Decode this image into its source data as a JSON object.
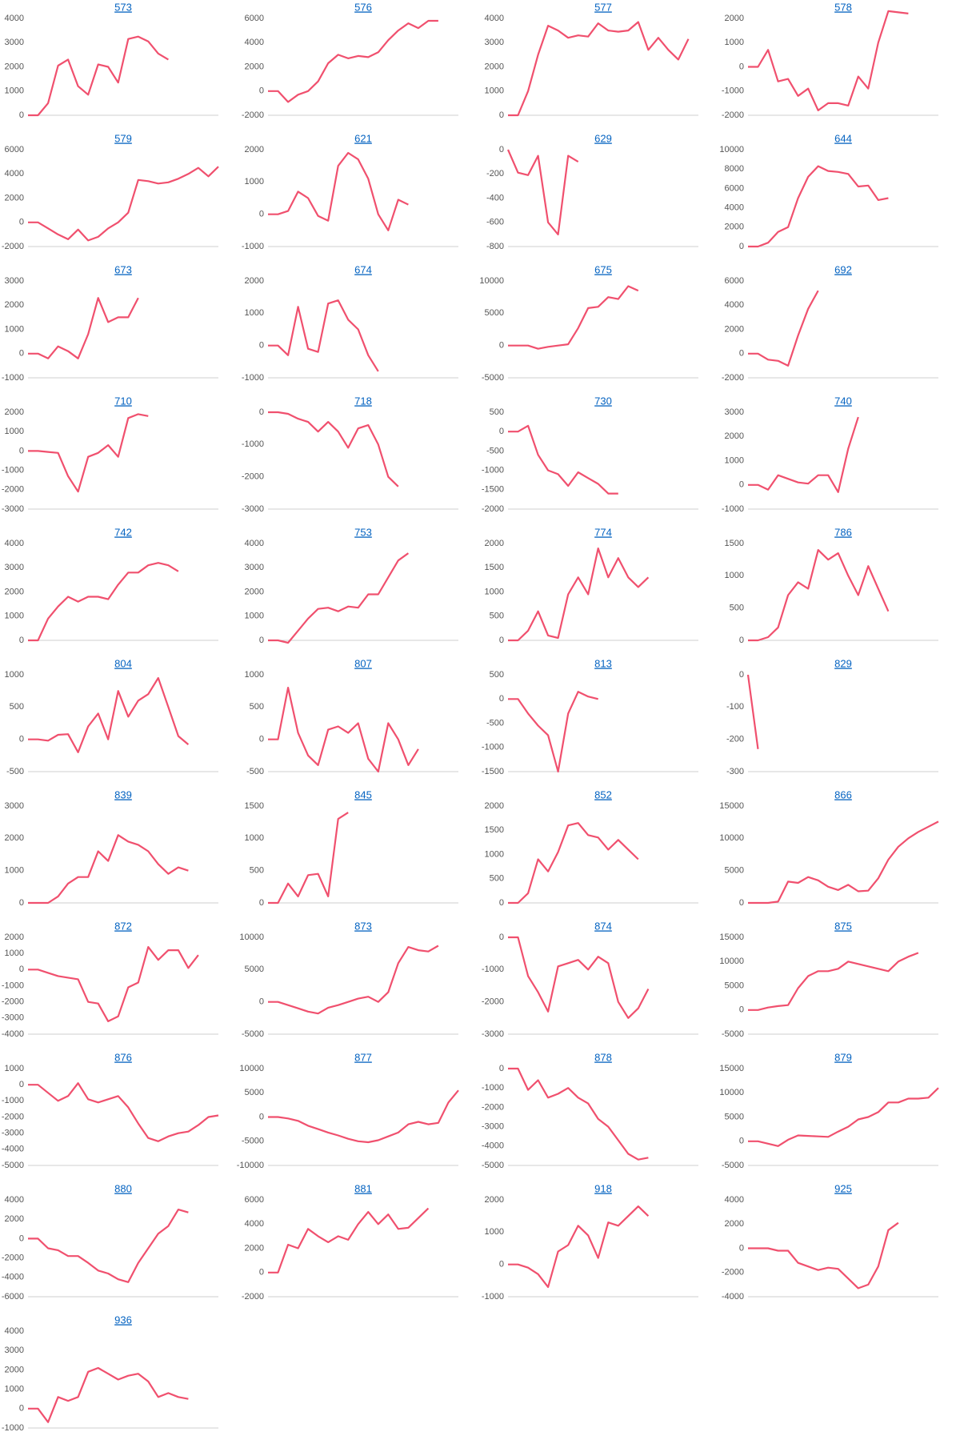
{
  "chart_data": [
    {
      "type": "line",
      "title": "573",
      "color": "#f0506e",
      "ylim": [
        0,
        4000
      ],
      "yticks": [
        0,
        1000,
        2000,
        3000,
        4000
      ],
      "values": [
        0,
        0,
        500,
        2050,
        2300,
        1200,
        850,
        2100,
        2000,
        1350,
        3150,
        3250,
        3050,
        2550,
        2300
      ]
    },
    {
      "type": "line",
      "title": "576",
      "color": "#f0506e",
      "ylim": [
        -2000,
        6000
      ],
      "yticks": [
        -2000,
        0,
        2000,
        4000,
        6000
      ],
      "values": [
        0,
        0,
        -900,
        -300,
        0,
        800,
        2300,
        3000,
        2700,
        2900,
        2800,
        3200,
        4200,
        5000,
        5600,
        5200,
        5800,
        5800
      ]
    },
    {
      "type": "line",
      "title": "577",
      "color": "#f0506e",
      "ylim": [
        0,
        4000
      ],
      "yticks": [
        0,
        1000,
        2000,
        3000,
        4000
      ],
      "values": [
        0,
        0,
        1000,
        2500,
        3700,
        3500,
        3200,
        3300,
        3250,
        3800,
        3500,
        3450,
        3500,
        3850,
        2700,
        3200,
        2700,
        2300,
        3150
      ]
    },
    {
      "type": "line",
      "title": "578",
      "color": "#f0506e",
      "ylim": [
        -2000,
        2000
      ],
      "yticks": [
        -2000,
        -1000,
        0,
        1000,
        2000
      ],
      "values": [
        0,
        0,
        700,
        -600,
        -500,
        -1200,
        -900,
        -1800,
        -1500,
        -1500,
        -1600,
        -400,
        -900,
        1000,
        2300,
        2250,
        2200
      ]
    },
    {
      "type": "line",
      "title": "579",
      "color": "#f0506e",
      "ylim": [
        -2000,
        6000
      ],
      "yticks": [
        -2000,
        0,
        2000,
        4000,
        6000
      ],
      "values": [
        0,
        0,
        -500,
        -1000,
        -1400,
        -600,
        -1500,
        -1200,
        -500,
        0,
        800,
        3500,
        3400,
        3200,
        3300,
        3600,
        4000,
        4500,
        3800,
        4600
      ]
    },
    {
      "type": "line",
      "title": "621",
      "color": "#f0506e",
      "ylim": [
        -1000,
        2000
      ],
      "yticks": [
        -1000,
        0,
        1000,
        2000
      ],
      "values": [
        0,
        0,
        100,
        700,
        500,
        -50,
        -200,
        1500,
        1900,
        1700,
        1100,
        0,
        -500,
        450,
        300
      ]
    },
    {
      "type": "line",
      "title": "629",
      "color": "#f0506e",
      "ylim": [
        -800,
        0
      ],
      "yticks": [
        -800,
        -600,
        -400,
        -200,
        0
      ],
      "values": [
        0,
        -190,
        -210,
        -50,
        -600,
        -700,
        -50,
        -100
      ]
    },
    {
      "type": "line",
      "title": "644",
      "color": "#f0506e",
      "ylim": [
        0,
        10000
      ],
      "yticks": [
        0,
        2000,
        4000,
        6000,
        8000,
        10000
      ],
      "values": [
        0,
        0,
        400,
        1500,
        2000,
        5000,
        7200,
        8300,
        7800,
        7700,
        7500,
        6200,
        6300,
        4800,
        5000
      ]
    },
    {
      "type": "line",
      "title": "673",
      "color": "#f0506e",
      "ylim": [
        -1000,
        3000
      ],
      "yticks": [
        -1000,
        0,
        1000,
        2000,
        3000
      ],
      "values": [
        0,
        0,
        -200,
        300,
        100,
        -200,
        800,
        2300,
        1300,
        1500,
        1500,
        2300
      ]
    },
    {
      "type": "line",
      "title": "674",
      "color": "#f0506e",
      "ylim": [
        -1000,
        2000
      ],
      "yticks": [
        -1000,
        0,
        1000,
        2000
      ],
      "values": [
        0,
        0,
        -300,
        1200,
        -100,
        -200,
        1300,
        1400,
        800,
        500,
        -300,
        -800
      ]
    },
    {
      "type": "line",
      "title": "675",
      "color": "#f0506e",
      "ylim": [
        -5000,
        10000
      ],
      "yticks": [
        -5000,
        0,
        5000,
        10000
      ],
      "values": [
        0,
        0,
        0,
        -500,
        -200,
        0,
        200,
        2700,
        5800,
        6000,
        7500,
        7200,
        9200,
        8500
      ]
    },
    {
      "type": "line",
      "title": "692",
      "color": "#f0506e",
      "ylim": [
        -2000,
        6000
      ],
      "yticks": [
        -2000,
        0,
        2000,
        4000,
        6000
      ],
      "values": [
        0,
        0,
        -500,
        -600,
        -1000,
        1500,
        3700,
        5200
      ]
    },
    {
      "type": "line",
      "title": "710",
      "color": "#f0506e",
      "ylim": [
        -3000,
        2000
      ],
      "yticks": [
        -3000,
        -2000,
        -1000,
        0,
        1000,
        2000
      ],
      "values": [
        0,
        0,
        -50,
        -100,
        -1300,
        -2100,
        -300,
        -100,
        300,
        -300,
        1700,
        1900,
        1800
      ]
    },
    {
      "type": "line",
      "title": "718",
      "color": "#f0506e",
      "ylim": [
        -3000,
        0
      ],
      "yticks": [
        -3000,
        -2000,
        -1000,
        0
      ],
      "values": [
        0,
        0,
        -50,
        -200,
        -300,
        -600,
        -300,
        -600,
        -1100,
        -500,
        -400,
        -1000,
        -2000,
        -2300
      ]
    },
    {
      "type": "line",
      "title": "730",
      "color": "#f0506e",
      "ylim": [
        -2000,
        500
      ],
      "yticks": [
        -2000,
        -1500,
        -1000,
        -500,
        0,
        500
      ],
      "values": [
        0,
        0,
        150,
        -600,
        -1000,
        -1100,
        -1400,
        -1050,
        -1200,
        -1350,
        -1600,
        -1600
      ]
    },
    {
      "type": "line",
      "title": "740",
      "color": "#f0506e",
      "ylim": [
        -1000,
        3000
      ],
      "yticks": [
        -1000,
        0,
        1000,
        2000,
        3000
      ],
      "values": [
        0,
        0,
        -200,
        400,
        250,
        100,
        50,
        400,
        400,
        -300,
        1500,
        2800
      ]
    },
    {
      "type": "line",
      "title": "742",
      "color": "#f0506e",
      "ylim": [
        0,
        4000
      ],
      "yticks": [
        0,
        1000,
        2000,
        3000,
        4000
      ],
      "values": [
        0,
        0,
        900,
        1400,
        1800,
        1600,
        1800,
        1800,
        1700,
        2300,
        2800,
        2800,
        3100,
        3200,
        3100,
        2850
      ]
    },
    {
      "type": "line",
      "title": "753",
      "color": "#f0506e",
      "ylim": [
        0,
        4000
      ],
      "yticks": [
        0,
        1000,
        2000,
        3000,
        4000
      ],
      "values": [
        0,
        0,
        -100,
        400,
        900,
        1300,
        1350,
        1200,
        1400,
        1350,
        1900,
        1900,
        2600,
        3300,
        3600
      ]
    },
    {
      "type": "line",
      "title": "774",
      "color": "#f0506e",
      "ylim": [
        0,
        2000
      ],
      "yticks": [
        0,
        500,
        1000,
        1500,
        2000
      ],
      "values": [
        0,
        0,
        200,
        600,
        100,
        50,
        950,
        1300,
        950,
        1900,
        1300,
        1700,
        1300,
        1100,
        1300
      ]
    },
    {
      "type": "line",
      "title": "786",
      "color": "#f0506e",
      "ylim": [
        0,
        1500
      ],
      "yticks": [
        0,
        500,
        1000,
        1500
      ],
      "values": [
        0,
        0,
        50,
        200,
        700,
        900,
        800,
        1400,
        1250,
        1350,
        1000,
        700,
        1150,
        800,
        450
      ]
    },
    {
      "type": "line",
      "title": "804",
      "color": "#f0506e",
      "ylim": [
        -500,
        1000
      ],
      "yticks": [
        -500,
        0,
        500,
        1000
      ],
      "values": [
        0,
        0,
        -20,
        70,
        80,
        -200,
        200,
        400,
        0,
        750,
        350,
        600,
        700,
        950,
        500,
        50,
        -80
      ]
    },
    {
      "type": "line",
      "title": "807",
      "color": "#f0506e",
      "ylim": [
        -500,
        1000
      ],
      "yticks": [
        -500,
        0,
        500,
        1000
      ],
      "values": [
        0,
        0,
        800,
        100,
        -250,
        -400,
        150,
        200,
        100,
        250,
        -300,
        -500,
        250,
        0,
        -400,
        -150
      ]
    },
    {
      "type": "line",
      "title": "813",
      "color": "#f0506e",
      "ylim": [
        -1500,
        500
      ],
      "yticks": [
        -1500,
        -1000,
        -500,
        0,
        500
      ],
      "values": [
        0,
        0,
        -300,
        -550,
        -750,
        -1500,
        -300,
        150,
        50,
        0
      ]
    },
    {
      "type": "line",
      "title": "829",
      "color": "#f0506e",
      "ylim": [
        -300,
        0
      ],
      "yticks": [
        -300,
        -200,
        -100,
        0
      ],
      "values": [
        0,
        -230
      ]
    },
    {
      "type": "line",
      "title": "839",
      "color": "#f0506e",
      "ylim": [
        0,
        3000
      ],
      "yticks": [
        0,
        1000,
        2000,
        3000
      ],
      "values": [
        0,
        0,
        0,
        200,
        600,
        800,
        800,
        1600,
        1300,
        2100,
        1900,
        1800,
        1600,
        1200,
        900,
        1100,
        1000
      ]
    },
    {
      "type": "line",
      "title": "845",
      "color": "#f0506e",
      "ylim": [
        0,
        1500
      ],
      "yticks": [
        0,
        500,
        1000,
        1500
      ],
      "values": [
        0,
        0,
        300,
        100,
        430,
        450,
        100,
        1300,
        1400
      ]
    },
    {
      "type": "line",
      "title": "852",
      "color": "#f0506e",
      "ylim": [
        0,
        2000
      ],
      "yticks": [
        0,
        500,
        1000,
        1500,
        2000
      ],
      "values": [
        0,
        0,
        200,
        900,
        650,
        1050,
        1600,
        1650,
        1400,
        1350,
        1100,
        1300,
        1100,
        900
      ]
    },
    {
      "type": "line",
      "title": "866",
      "color": "#f0506e",
      "ylim": [
        0,
        15000
      ],
      "yticks": [
        0,
        5000,
        10000,
        15000
      ],
      "values": [
        0,
        0,
        0,
        200,
        3300,
        3100,
        4000,
        3500,
        2500,
        2000,
        2800,
        1800,
        1900,
        3800,
        6700,
        8700,
        10000,
        11000,
        11800,
        12600
      ]
    },
    {
      "type": "line",
      "title": "872",
      "color": "#f0506e",
      "ylim": [
        -4000,
        2000
      ],
      "yticks": [
        -4000,
        -3000,
        -2000,
        -1000,
        0,
        1000,
        2000
      ],
      "values": [
        0,
        0,
        -200,
        -400,
        -500,
        -600,
        -2000,
        -2100,
        -3200,
        -2900,
        -1100,
        -800,
        1400,
        600,
        1200,
        1200,
        100,
        900
      ]
    },
    {
      "type": "line",
      "title": "873",
      "color": "#f0506e",
      "ylim": [
        -5000,
        10000
      ],
      "yticks": [
        -5000,
        0,
        5000,
        10000
      ],
      "values": [
        0,
        0,
        -500,
        -1000,
        -1500,
        -1800,
        -900,
        -500,
        0,
        500,
        800,
        0,
        1500,
        6000,
        8500,
        8000,
        7800,
        8700
      ]
    },
    {
      "type": "line",
      "title": "874",
      "color": "#f0506e",
      "ylim": [
        -3000,
        0
      ],
      "yticks": [
        -3000,
        -2000,
        -1000,
        0
      ],
      "values": [
        0,
        0,
        -1200,
        -1700,
        -2300,
        -900,
        -800,
        -700,
        -1000,
        -600,
        -800,
        -2000,
        -2500,
        -2200,
        -1600
      ]
    },
    {
      "type": "line",
      "title": "875",
      "color": "#f0506e",
      "ylim": [
        -5000,
        15000
      ],
      "yticks": [
        -5000,
        0,
        5000,
        10000,
        15000
      ],
      "values": [
        0,
        0,
        500,
        800,
        1000,
        4500,
        7000,
        8000,
        8000,
        8500,
        10000,
        9500,
        9000,
        8500,
        8000,
        10000,
        11000,
        11800
      ]
    },
    {
      "type": "line",
      "title": "876",
      "color": "#f0506e",
      "ylim": [
        -5000,
        1000
      ],
      "yticks": [
        -5000,
        -4000,
        -3000,
        -2000,
        -1000,
        0,
        1000
      ],
      "values": [
        0,
        0,
        -500,
        -1000,
        -700,
        100,
        -900,
        -1100,
        -900,
        -700,
        -1400,
        -2400,
        -3300,
        -3500,
        -3200,
        -3000,
        -2900,
        -2500,
        -2000,
        -1900
      ]
    },
    {
      "type": "line",
      "title": "877",
      "color": "#f0506e",
      "ylim": [
        -10000,
        10000
      ],
      "yticks": [
        -10000,
        -5000,
        0,
        5000,
        10000
      ],
      "values": [
        0,
        0,
        -300,
        -800,
        -1800,
        -2500,
        -3200,
        -3800,
        -4500,
        -5000,
        -5200,
        -4800,
        -4000,
        -3200,
        -1500,
        -1000,
        -1500,
        -1200,
        3000,
        5500
      ]
    },
    {
      "type": "line",
      "title": "878",
      "color": "#f0506e",
      "ylim": [
        -5000,
        0
      ],
      "yticks": [
        -5000,
        -4000,
        -3000,
        -2000,
        -1000,
        0
      ],
      "values": [
        0,
        0,
        -1100,
        -600,
        -1500,
        -1300,
        -1000,
        -1500,
        -1800,
        -2600,
        -3000,
        -3700,
        -4400,
        -4700,
        -4600
      ]
    },
    {
      "type": "line",
      "title": "879",
      "color": "#f0506e",
      "ylim": [
        -5000,
        15000
      ],
      "yticks": [
        -5000,
        0,
        5000,
        10000,
        15000
      ],
      "values": [
        0,
        0,
        -500,
        -1000,
        300,
        1200,
        1100,
        1000,
        900,
        2000,
        3000,
        4500,
        5000,
        6000,
        8000,
        8000,
        8800,
        8800,
        9000,
        11000
      ]
    },
    {
      "type": "line",
      "title": "880",
      "color": "#f0506e",
      "ylim": [
        -6000,
        4000
      ],
      "yticks": [
        -6000,
        -4000,
        -2000,
        0,
        2000,
        4000
      ],
      "values": [
        0,
        0,
        -1000,
        -1200,
        -1800,
        -1800,
        -2500,
        -3300,
        -3600,
        -4200,
        -4500,
        -2500,
        -1000,
        500,
        1300,
        3000,
        2700
      ]
    },
    {
      "type": "line",
      "title": "881",
      "color": "#f0506e",
      "ylim": [
        -2000,
        6000
      ],
      "yticks": [
        -2000,
        0,
        2000,
        4000,
        6000
      ],
      "values": [
        0,
        0,
        2300,
        2000,
        3600,
        3000,
        2500,
        3000,
        2700,
        4000,
        5000,
        4000,
        4800,
        3600,
        3700,
        4500,
        5300
      ]
    },
    {
      "type": "line",
      "title": "918",
      "color": "#f0506e",
      "ylim": [
        -1000,
        2000
      ],
      "yticks": [
        -1000,
        0,
        1000,
        2000
      ],
      "values": [
        0,
        0,
        -100,
        -300,
        -700,
        400,
        600,
        1200,
        900,
        200,
        1300,
        1200,
        1500,
        1800,
        1500
      ]
    },
    {
      "type": "line",
      "title": "925",
      "color": "#f0506e",
      "ylim": [
        -4000,
        4000
      ],
      "yticks": [
        -4000,
        -2000,
        0,
        2000,
        4000
      ],
      "values": [
        0,
        0,
        0,
        -200,
        -200,
        -1200,
        -1500,
        -1800,
        -1600,
        -1700,
        -2500,
        -3300,
        -3000,
        -1500,
        1500,
        2100
      ]
    },
    {
      "type": "line",
      "title": "936",
      "color": "#f0506e",
      "ylim": [
        -1000,
        4000
      ],
      "yticks": [
        -1000,
        0,
        1000,
        2000,
        3000,
        4000
      ],
      "values": [
        0,
        0,
        -700,
        600,
        400,
        600,
        1900,
        2100,
        1800,
        1500,
        1700,
        1800,
        1400,
        600,
        800,
        600,
        500
      ]
    }
  ]
}
